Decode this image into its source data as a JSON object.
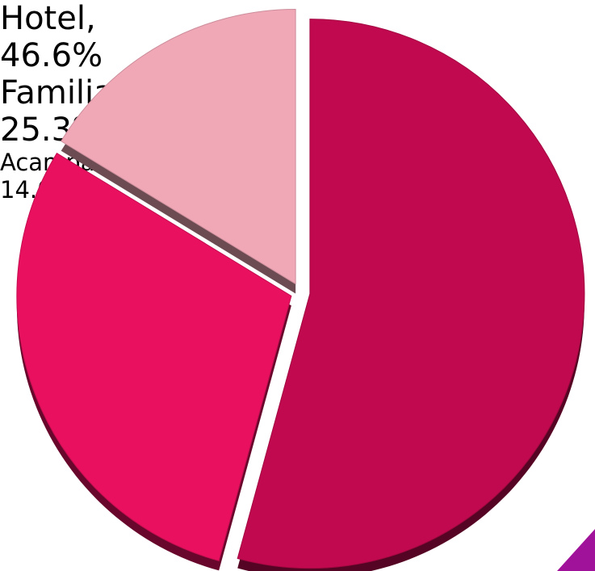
{
  "chart_data": {
    "type": "pie",
    "categories": [
      "Hotel,",
      "Familia / Amigos,",
      "Acampará,"
    ],
    "values": [
      46.6,
      25.3,
      14.0
    ],
    "value_labels": [
      "46.6%",
      "25.3%",
      "14.0%"
    ],
    "colors": [
      "#c0094e",
      "#e8105f",
      "#f0a7b6"
    ]
  }
}
